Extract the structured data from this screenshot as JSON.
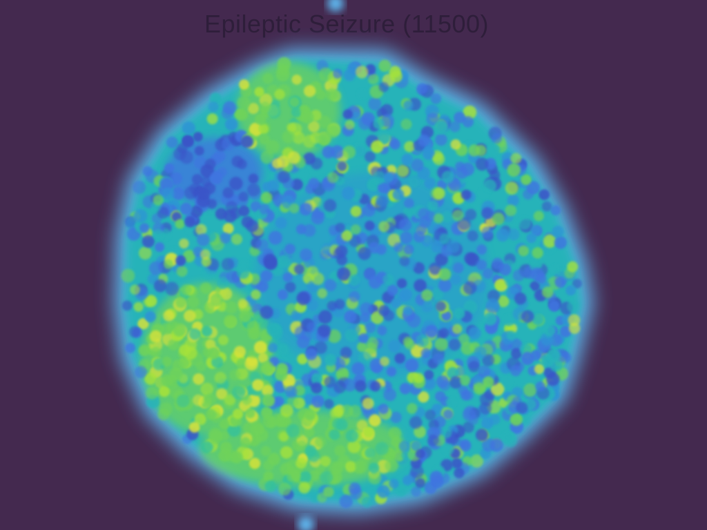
{
  "chart_data": {
    "type": "scatter",
    "title": "Epileptic Seizure (11500)",
    "subtitle": "",
    "xlabel": "",
    "ylabel": "",
    "axes_visible": false,
    "grid": false,
    "legend": "none",
    "n_points": 11500,
    "colormap": "viridis",
    "background_color": "#44294f",
    "halo_color": "#5fb8f0",
    "palette": [
      "#3a55c8",
      "#3f74e0",
      "#2f93d6",
      "#27b3b9",
      "#34c19c",
      "#6fd35a",
      "#a6e23b",
      "#d8e23a"
    ],
    "density_regions": [
      {
        "name": "upper-center-green-lobe",
        "level": "high"
      },
      {
        "name": "left-lower-green-lobe",
        "level": "high"
      },
      {
        "name": "bottom-green-band",
        "level": "high"
      },
      {
        "name": "central-mixed-core",
        "level": "medium"
      },
      {
        "name": "upper-left-blue-patch",
        "level": "low"
      }
    ]
  }
}
